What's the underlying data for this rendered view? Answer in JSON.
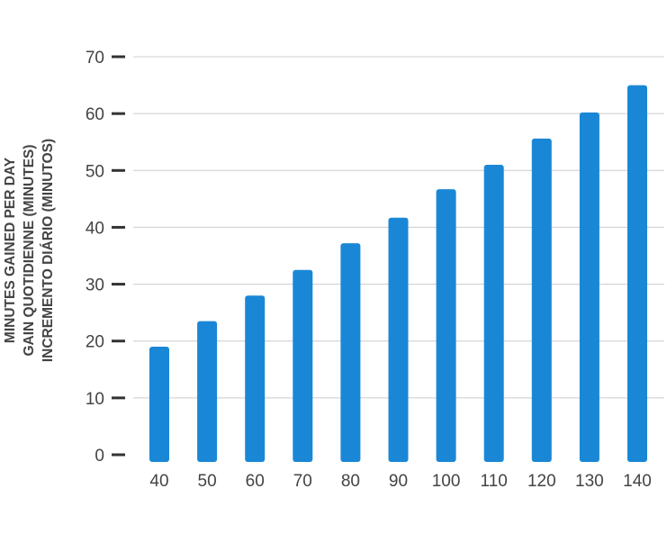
{
  "chart_data": {
    "type": "bar",
    "title": "",
    "xlabel": "",
    "ylabel_lines": [
      "MINUTES GAINED PER DAY",
      "GAIN QUOTIDIENNE (MINUTES)",
      "INCREMENTO DIÁRIO (MINUTOS)"
    ],
    "categories": [
      "40",
      "50",
      "60",
      "70",
      "80",
      "90",
      "100",
      "110",
      "120",
      "130",
      "140"
    ],
    "values": [
      19,
      23.5,
      28,
      32.5,
      37.2,
      41.7,
      46.7,
      51,
      55.6,
      60.2,
      65
    ],
    "ylim": [
      0,
      70
    ],
    "yticks": [
      0,
      10,
      20,
      30,
      40,
      50,
      60,
      70
    ],
    "grid": true,
    "legend": "none",
    "colors": {
      "bar": "#1a87d6",
      "grid": "#cccccc",
      "tick_mark": "#333333",
      "text": "#444444"
    }
  }
}
